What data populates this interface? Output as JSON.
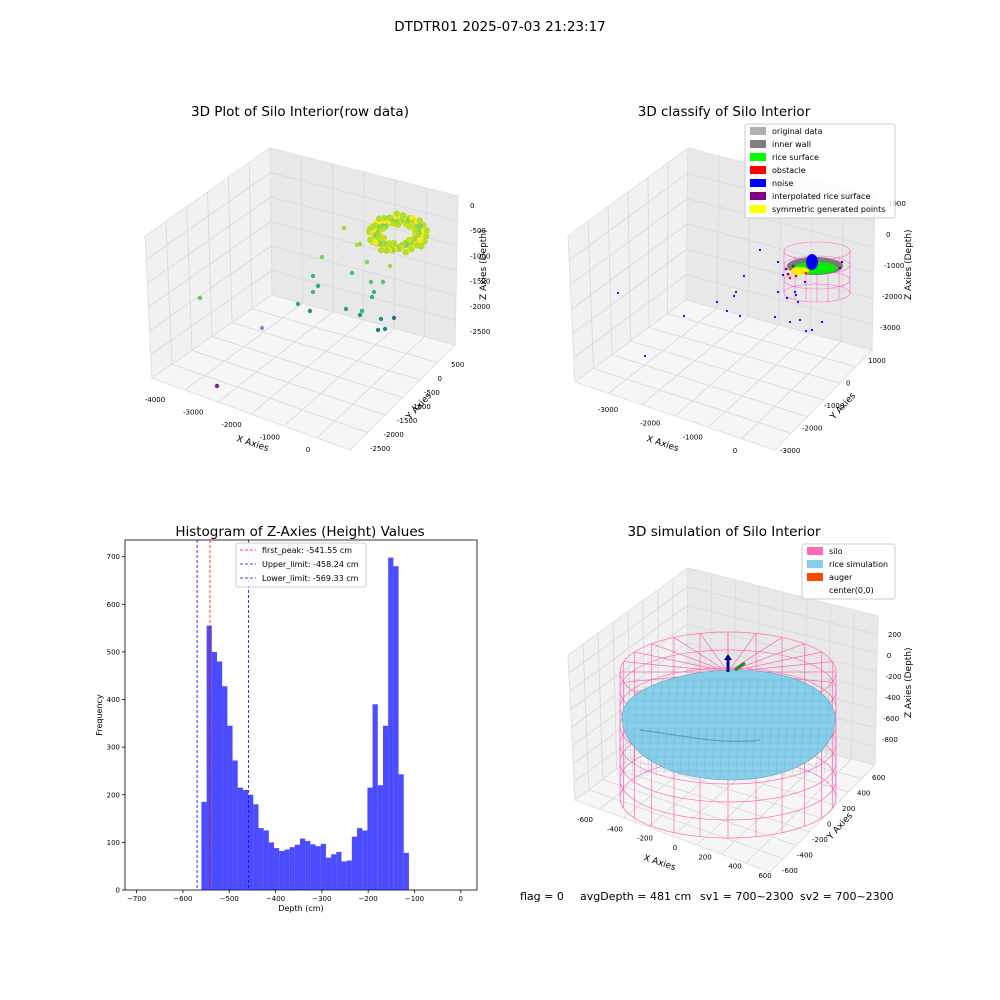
{
  "suptitle": "DTDTR01 2025-07-03 21:23:17",
  "status_line": {
    "flag": "flag = 0",
    "avg": "avgDepth = 481 cm",
    "sv1": "sv1 = 700~2300",
    "sv2": "sv2 = 700~2300"
  },
  "chart_data": [
    {
      "type": "scatter",
      "title": "3D Plot of Silo Interior(row data)",
      "xlabel": "X Axies",
      "ylabel": "Y Axies",
      "zlabel": "Z Axies (Depth)",
      "x_ticks": [
        "-4000",
        "-3000",
        "-2000",
        "-1000",
        "0"
      ],
      "y_ticks": [
        "-2500",
        "-2000",
        "-1500",
        "-1000",
        "-500",
        "0",
        "500"
      ],
      "z_ticks": [
        "0",
        "-500",
        "-1000",
        "-1500",
        "-2000",
        "-2500"
      ],
      "colormap": "viridis",
      "note": "dense ring of points near X≈0..-500, Z≈-500..-1000 (yellow-green), scattered outliers down to Z≈-2600"
    },
    {
      "type": "scatter",
      "title": "3D classify of Silo Interior",
      "xlabel": "X Axies",
      "ylabel": "Y Axies",
      "zlabel": "Z Axies (Depth)",
      "x_ticks": [
        "-3000",
        "-2000",
        "-1000",
        "0"
      ],
      "y_ticks": [
        "-3000",
        "-2000",
        "-1000",
        "0",
        "1000"
      ],
      "z_ticks": [
        "1000",
        "0",
        "-1000",
        "-2000",
        "-3000"
      ],
      "legend_position": "top-right",
      "legend": [
        {
          "label": "original data",
          "color": "#b0b0b0"
        },
        {
          "label": "inner wall",
          "color": "#808080"
        },
        {
          "label": "rice surface",
          "color": "#00ff00"
        },
        {
          "label": "obstacle",
          "color": "#ff0000"
        },
        {
          "label": "noise",
          "color": "#0000ff"
        },
        {
          "label": "interpolated rice surface",
          "color": "#800080"
        },
        {
          "label": "symmetric generated points",
          "color": "#ffff00"
        }
      ]
    },
    {
      "type": "bar",
      "title": "Histogram of Z-Axies (Height) Values",
      "xlabel": "Depth (cm)",
      "ylabel": "Frequency",
      "xlim": [
        -725,
        35
      ],
      "ylim": [
        0,
        735
      ],
      "x_ticks": [
        -700,
        -600,
        -500,
        -400,
        -300,
        -200,
        -100,
        0
      ],
      "y_ticks": [
        0,
        100,
        200,
        300,
        400,
        500,
        600,
        700
      ],
      "bin_start": -560,
      "bin_width": 11.2,
      "values": [
        185,
        555,
        500,
        480,
        428,
        345,
        272,
        215,
        210,
        200,
        180,
        130,
        125,
        100,
        88,
        82,
        85,
        90,
        95,
        108,
        103,
        96,
        92,
        97,
        68,
        75,
        80,
        60,
        62,
        112,
        130,
        125,
        215,
        390,
        220,
        345,
        698,
        680,
        243,
        78
      ],
      "bar_color": "#0000ff",
      "legend_position": "top-center",
      "vlines": [
        {
          "label": "first_peak: -541.55 cm",
          "x": -541.55,
          "color": "#ff0000"
        },
        {
          "label": "Upper_limit: -458.24 cm",
          "x": -458.24,
          "color": "#0000ff"
        },
        {
          "label": "Lower_limit: -569.33 cm",
          "x": -569.33,
          "color": "#0000ff"
        }
      ]
    },
    {
      "type": "scatter",
      "title": "3D simulation of Silo Interior",
      "xlabel": "X Axies",
      "ylabel": "Y Axies",
      "zlabel": "Z Axies (Depth)",
      "x_ticks": [
        "-600",
        "-400",
        "-200",
        "0",
        "200",
        "400",
        "600"
      ],
      "y_ticks": [
        "-600",
        "-400",
        "-200",
        "0",
        "200",
        "400",
        "600"
      ],
      "z_ticks": [
        "200",
        "0",
        "-200",
        "-400",
        "-600",
        "-800"
      ],
      "legend_position": "top-right",
      "legend": [
        {
          "label": "silo",
          "color": "#ff69b4"
        },
        {
          "label": "rice simulation",
          "color": "#87ceeb"
        },
        {
          "label": "auger",
          "color": "#ff4500"
        },
        {
          "label": "center(0,0)",
          "color": "#ffffff"
        }
      ]
    }
  ]
}
